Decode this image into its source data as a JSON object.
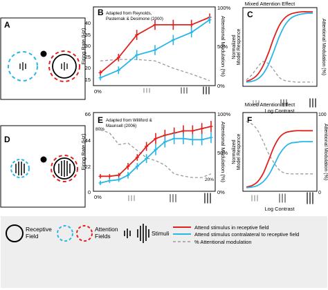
{
  "colors": {
    "attend_in": "#e0201b",
    "attend_out": "#28b5e8",
    "modulation": "#999999",
    "frame": "#000000"
  },
  "panels": {
    "A": {
      "letter": "A"
    },
    "B": {
      "letter": "B",
      "note_line1": "Adapted from Reynolds,",
      "note_line2": "Pasternak & Desimone (2000)",
      "ylabel": "Firing Rate (Hz)",
      "y2label": "Attentional Modulation (%)",
      "yticks": [
        "15",
        "20",
        "25",
        "30",
        "35",
        "40"
      ],
      "y2ticks": [
        "100%",
        "50%",
        "0%"
      ],
      "xzero": "0%"
    },
    "C": {
      "letter": "C",
      "title": "Mixed Attention Effect",
      "ylabel_line1": "Normalized",
      "ylabel_line2": "Model Responce",
      "y2label": "Attentional Modulation (%)",
      "xlabel": "Log Contrast"
    },
    "D": {
      "letter": "D"
    },
    "E": {
      "letter": "E",
      "note_line1": "Adapted from Williford &",
      "note_line2": "Maunsell (2006)",
      "ylabel": "Firing Rate (Hz)",
      "y2label": "Attentional Modulation (%)",
      "yticks": [
        "0",
        "22",
        "44",
        "66"
      ],
      "y2ticks": [
        "100%",
        "50%",
        "0%"
      ],
      "xzero": "0%",
      "annot_80": "80%",
      "annot_20": "20%"
    },
    "F": {
      "letter": "F",
      "title": "Mixed Attention Effect",
      "ylabel_line1": "Normalized",
      "ylabel_line2": "Model Responce",
      "y2label": "Attentional Modulation (%)",
      "xlabel": "Log Contrast",
      "y2_top": "100",
      "y2_bottom": "0"
    }
  },
  "legend": {
    "rf_line1": "Receptive",
    "rf_line2": "Field",
    "af_line1": "Attention",
    "af_line2": "Fields",
    "stimuli": "Stimuli",
    "attend_in": "Attend stimulus in receptive field",
    "attend_out": "Attend stimulus contralateral to receptive field",
    "modulation": "% Attentional modulation"
  },
  "chart_data": [
    {
      "panel": "B",
      "type": "line",
      "x": [
        1,
        2,
        3,
        4,
        5,
        6,
        7
      ],
      "ylim": [
        13,
        42
      ],
      "y2lim": [
        0,
        100
      ],
      "series": [
        {
          "name": "Attend stimulus in receptive field",
          "axis": "left",
          "values": [
            17,
            23,
            32,
            36,
            36,
            36,
            39
          ],
          "err": [
            1.0,
            1.5,
            2.0,
            2.0,
            2.0,
            2.0,
            1.5
          ]
        },
        {
          "name": "Attend stimulus contralateral to receptive field",
          "axis": "left",
          "values": [
            15,
            18,
            24,
            26,
            30,
            33,
            38
          ],
          "err": [
            1.0,
            1.5,
            2.0,
            2.0,
            2.0,
            2.0,
            1.5
          ]
        },
        {
          "name": "% Attentional modulation",
          "axis": "right",
          "values": [
            30,
            32,
            32,
            30,
            20,
            12,
            3
          ]
        }
      ]
    },
    {
      "panel": "C",
      "type": "line",
      "x": [
        -3,
        -2.5,
        -2,
        -1.5,
        -1,
        -0.5,
        0,
        0.5,
        1,
        1.5,
        2,
        2.5,
        3
      ],
      "ylim": [
        0,
        1
      ],
      "y2lim": [
        0,
        100
      ],
      "series": [
        {
          "name": "Attend stimulus in receptive field",
          "axis": "left",
          "values": [
            0.03,
            0.06,
            0.12,
            0.24,
            0.42,
            0.63,
            0.8,
            0.9,
            0.95,
            0.97,
            0.98,
            0.98,
            0.98
          ]
        },
        {
          "name": "Attend stimulus contralateral to receptive field",
          "axis": "left",
          "values": [
            0.02,
            0.03,
            0.06,
            0.13,
            0.26,
            0.45,
            0.65,
            0.8,
            0.89,
            0.93,
            0.95,
            0.96,
            0.96
          ]
        },
        {
          "name": "% Attentional modulation",
          "axis": "right",
          "values": [
            5,
            12,
            22,
            30,
            27,
            18,
            8,
            4,
            3,
            2,
            2,
            2,
            2
          ]
        }
      ]
    },
    {
      "panel": "E",
      "type": "line",
      "x": [
        1,
        2,
        3,
        4,
        5,
        6,
        7,
        8,
        9,
        10,
        11,
        12,
        13
      ],
      "ylim": [
        0,
        66
      ],
      "y2lim": [
        0,
        100
      ],
      "series": [
        {
          "name": "Attend stimulus in receptive field",
          "axis": "left",
          "values": [
            11,
            11,
            12,
            20,
            28,
            38,
            45,
            48,
            50,
            52,
            52,
            54,
            56
          ],
          "err": [
            2,
            2,
            2,
            3,
            3,
            4,
            5,
            5,
            5,
            5,
            5,
            5,
            5
          ]
        },
        {
          "name": "Attend stimulus contralateral to receptive field",
          "axis": "left",
          "values": [
            5,
            7,
            8,
            12,
            20,
            27,
            35,
            42,
            45,
            45,
            44,
            44,
            46
          ],
          "err": [
            2,
            2,
            2,
            3,
            3,
            4,
            5,
            5,
            5,
            5,
            5,
            5,
            5
          ]
        },
        {
          "name": "% Attentional modulation",
          "axis": "right",
          "values": [
            80,
            76,
            60,
            62,
            52,
            42,
            38,
            32,
            20,
            17,
            15,
            15,
            20
          ]
        }
      ]
    },
    {
      "panel": "F",
      "type": "line",
      "x": [
        -3,
        -2.5,
        -2,
        -1.5,
        -1,
        -0.5,
        0,
        0.5,
        1,
        1.5,
        2,
        2.5,
        3
      ],
      "ylim": [
        0,
        1
      ],
      "y2lim": [
        0,
        100
      ],
      "series": [
        {
          "name": "Attend stimulus in receptive field",
          "axis": "left",
          "values": [
            0.02,
            0.04,
            0.09,
            0.2,
            0.38,
            0.57,
            0.7,
            0.76,
            0.78,
            0.79,
            0.79,
            0.79,
            0.79
          ]
        },
        {
          "name": "Attend stimulus contralateral to receptive field",
          "axis": "left",
          "values": [
            0.01,
            0.02,
            0.04,
            0.09,
            0.18,
            0.32,
            0.47,
            0.57,
            0.62,
            0.63,
            0.64,
            0.64,
            0.64
          ]
        },
        {
          "name": "% Attentional modulation",
          "axis": "right",
          "values": [
            92,
            88,
            80,
            65,
            48,
            35,
            25,
            21,
            20,
            20,
            20,
            20,
            20
          ]
        }
      ]
    }
  ]
}
